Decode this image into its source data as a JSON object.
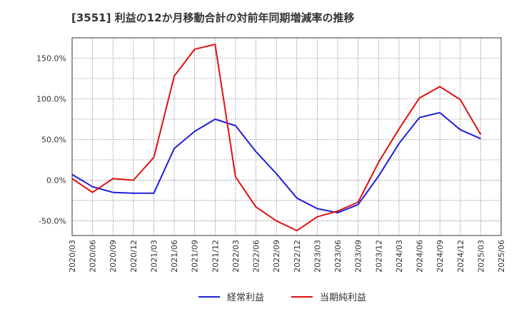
{
  "chart_data": {
    "type": "line",
    "title": "[3551]  利益の12か月移動合計の対前年同期増減率の推移",
    "xlabel": "",
    "ylabel": "",
    "ylim": [
      -68,
      175
    ],
    "yticks": [
      150,
      100,
      50,
      0,
      -50
    ],
    "ytick_labels": [
      "150.0%",
      "100.0%",
      "50.0%",
      "0.0%",
      "-50.0%"
    ],
    "x": [
      "2020/03",
      "2020/06",
      "2020/09",
      "2020/12",
      "2021/03",
      "2021/06",
      "2021/09",
      "2021/12",
      "2022/03",
      "2022/06",
      "2022/09",
      "2022/12",
      "2023/03",
      "2023/06",
      "2023/09",
      "2023/12",
      "2024/03",
      "2024/06",
      "2024/09",
      "2024/12",
      "2025/03",
      "2025/06"
    ],
    "series": [
      {
        "name": "経常利益",
        "color": "#1f1fd6",
        "values": [
          7,
          -8,
          -15,
          -16,
          -16,
          39,
          60,
          75,
          67,
          35,
          8,
          -22,
          -35,
          -40,
          -30,
          5,
          45,
          77,
          83,
          62,
          51,
          null
        ]
      },
      {
        "name": "当期純利益",
        "color": "#e01010",
        "values": [
          2,
          -15,
          2,
          0,
          28,
          128,
          161,
          167,
          4,
          -33,
          -50,
          -62,
          -45,
          -38,
          -27,
          22,
          63,
          101,
          115,
          99,
          56,
          null
        ]
      }
    ],
    "grid": true,
    "legend_position": "bottom-center"
  }
}
